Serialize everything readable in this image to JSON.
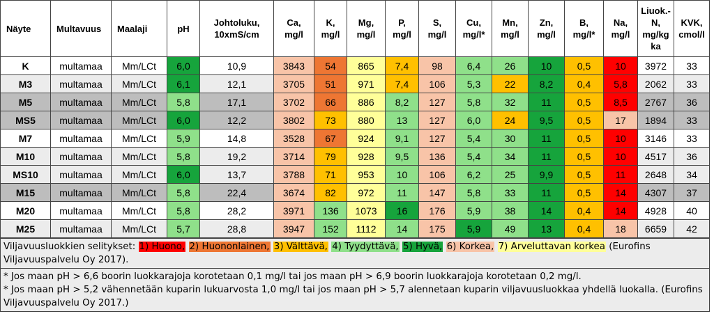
{
  "headers": [
    "Näyte",
    "Multavuus",
    "Maalaji",
    "pH",
    "Johtoluku,\n10xmS/cm",
    "Ca,\nmg/l",
    "K,\nmg/l",
    "Mg,\nmg/l",
    "P,\nmg/l",
    "S,\nmg/l",
    "Cu,\nmg/l*",
    "Mn,\nmg/l",
    "Zn,\nmg/l",
    "B,\nmg/l*",
    "Na,\nmg/l",
    "Liuok.-\nN,\nmg/kg\nka",
    "KVK,\ncmol/l"
  ],
  "class_colors": {
    "1": "#ff0000",
    "2": "#ee7633",
    "3": "#ffc000",
    "4": "#8fe08a",
    "5": "#16a43c",
    "6": "#f8c4a8",
    "7": "#ffff99"
  },
  "rows": [
    {
      "shade": "rw",
      "cells": [
        "K",
        "multamaa",
        "Mm/LCt",
        "6,0",
        "10,9",
        "3843",
        "54",
        "865",
        "7,4",
        "98",
        "6,4",
        "26",
        "10",
        "0,5",
        "10",
        "3972",
        "33"
      ],
      "classes": [
        0,
        0,
        0,
        5,
        0,
        6,
        2,
        7,
        3,
        6,
        4,
        4,
        5,
        3,
        1,
        0,
        0
      ]
    },
    {
      "shade": "rl",
      "cells": [
        "M3",
        "multamaa",
        "Mm/LCt",
        "6,1",
        "12,1",
        "3705",
        "51",
        "971",
        "7,4",
        "106",
        "5,3",
        "22",
        "8,2",
        "0,4",
        "5,8",
        "2062",
        "33"
      ],
      "classes": [
        0,
        0,
        0,
        5,
        0,
        6,
        2,
        7,
        3,
        6,
        4,
        3,
        5,
        3,
        1,
        0,
        0
      ]
    },
    {
      "shade": "rg",
      "cells": [
        "M5",
        "multamaa",
        "Mm/LCt",
        "5,8",
        "17,1",
        "3702",
        "66",
        "886",
        "8,2",
        "127",
        "5,8",
        "32",
        "11",
        "0,5",
        "8,5",
        "2767",
        "36"
      ],
      "classes": [
        0,
        0,
        0,
        4,
        0,
        6,
        2,
        7,
        4,
        6,
        4,
        4,
        5,
        3,
        1,
        0,
        0
      ]
    },
    {
      "shade": "rg",
      "cells": [
        "MS5",
        "multamaa",
        "Mm/LCt",
        "6,0",
        "12,2",
        "3802",
        "73",
        "880",
        "13",
        "127",
        "6,0",
        "24",
        "9,5",
        "0,5",
        "17",
        "1894",
        "33"
      ],
      "classes": [
        0,
        0,
        0,
        5,
        0,
        6,
        3,
        7,
        4,
        6,
        4,
        3,
        5,
        3,
        6,
        0,
        0
      ]
    },
    {
      "shade": "rw",
      "cells": [
        "M7",
        "multamaa",
        "Mm/LCt",
        "5,9",
        "14,8",
        "3528",
        "67",
        "924",
        "9,1",
        "127",
        "5,4",
        "30",
        "11",
        "0,5",
        "10",
        "3146",
        "33"
      ],
      "classes": [
        0,
        0,
        0,
        4,
        0,
        6,
        2,
        7,
        4,
        6,
        4,
        4,
        5,
        3,
        1,
        0,
        0
      ]
    },
    {
      "shade": "rl",
      "cells": [
        "M10",
        "multamaa",
        "Mm/LCt",
        "5,8",
        "19,2",
        "3714",
        "79",
        "928",
        "9,5",
        "136",
        "5,4",
        "34",
        "11",
        "0,5",
        "10",
        "4517",
        "36"
      ],
      "classes": [
        0,
        0,
        0,
        4,
        0,
        6,
        3,
        7,
        4,
        6,
        4,
        4,
        5,
        3,
        1,
        0,
        0
      ]
    },
    {
      "shade": "rl",
      "cells": [
        "MS10",
        "multamaa",
        "Mm/LCt",
        "6,0",
        "13,7",
        "3788",
        "71",
        "953",
        "10",
        "106",
        "6,2",
        "25",
        "9,9",
        "0,5",
        "11",
        "2648",
        "34"
      ],
      "classes": [
        0,
        0,
        0,
        5,
        0,
        6,
        3,
        7,
        4,
        6,
        4,
        4,
        5,
        3,
        1,
        0,
        0
      ]
    },
    {
      "shade": "rg",
      "cells": [
        "M15",
        "multamaa",
        "Mm/LCt",
        "5,8",
        "22,4",
        "3674",
        "82",
        "972",
        "11",
        "147",
        "5,8",
        "33",
        "11",
        "0,5",
        "14",
        "4307",
        "37"
      ],
      "classes": [
        0,
        0,
        0,
        4,
        0,
        6,
        3,
        7,
        4,
        6,
        4,
        4,
        5,
        3,
        1,
        0,
        0
      ]
    },
    {
      "shade": "rw",
      "cells": [
        "M20",
        "multamaa",
        "Mm/LCt",
        "5,8",
        "28,2",
        "3971",
        "136",
        "1073",
        "16",
        "176",
        "5,9",
        "38",
        "14",
        "0,4",
        "14",
        "4928",
        "40"
      ],
      "classes": [
        0,
        0,
        0,
        4,
        0,
        6,
        4,
        7,
        5,
        6,
        4,
        4,
        5,
        3,
        1,
        0,
        0
      ]
    },
    {
      "shade": "rl",
      "cells": [
        "M25",
        "multamaa",
        "Mm/LCt",
        "5,7",
        "28,8",
        "3947",
        "152",
        "1112",
        "14",
        "175",
        "5,9",
        "49",
        "13",
        "0,4",
        "18",
        "6659",
        "42"
      ],
      "classes": [
        0,
        0,
        0,
        4,
        0,
        6,
        4,
        7,
        4,
        6,
        5,
        4,
        5,
        3,
        6,
        0,
        0
      ]
    }
  ],
  "notes": {
    "legend_prefix": "Viljavuusluokkien selitykset: ",
    "legend_items": [
      {
        "text": "1) Huono,",
        "class": 1
      },
      {
        "text": "2) Huononlainen,",
        "class": 2
      },
      {
        "text": "3) Välttävä,",
        "class": 3
      },
      {
        "text": "4) Tyydyttävä,",
        "class": 4
      },
      {
        "text": "5) Hyvä,",
        "class": 5
      },
      {
        "text": "6) Korkea,",
        "class": 6
      },
      {
        "text": "7) Arveluttavan korkea",
        "class": 7
      }
    ],
    "legend_suffix": " (Eurofins Viljavuuspalvelu Oy 2017).",
    "footnote1": "* Jos maan pH > 6,6 boorin luokkarajoja korotetaan 0,1 mg/l tai jos maan pH > 6,9 boorin luokkarajoja korotetaan 0,2 mg/l.",
    "footnote2": "* Jos maan pH > 5,2 vähennetään kuparin lukuarvosta 1,0 mg/l tai jos maan pH > 5,7 alennetaan kuparin viljavuusluokkaa yhdellä luokalla. (Eurofins Viljavuuspalvelu Oy 2017.)"
  }
}
